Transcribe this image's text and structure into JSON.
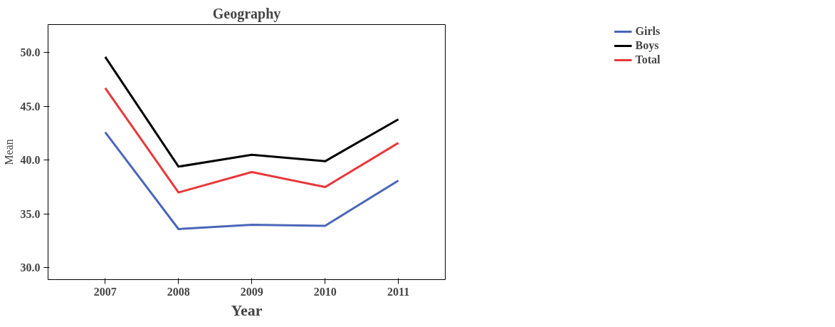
{
  "chart_data": {
    "type": "line",
    "title": "Geography",
    "xlabel": "Year",
    "ylabel": "Mean",
    "x": [
      2007,
      2008,
      2009,
      2010,
      2011
    ],
    "series": [
      {
        "name": "Girls",
        "color": "#4a66b8",
        "values": [
          42.6,
          33.6,
          34.0,
          33.9,
          38.1
        ]
      },
      {
        "name": "Boys",
        "color": "#000000",
        "values": [
          49.6,
          39.4,
          40.5,
          39.9,
          43.8
        ]
      },
      {
        "name": "Total",
        "color": "#e8383a",
        "values": [
          46.7,
          37.0,
          38.9,
          37.5,
          41.6
        ]
      }
    ],
    "xlim": [
      2006.22,
      2011.64
    ],
    "xticks": [
      2007,
      2008,
      2009,
      2010,
      2011
    ],
    "ylim": [
      28.9,
      52.6
    ],
    "yticks": [
      {
        "value": 30,
        "label": "30.0"
      },
      {
        "value": 35,
        "label": "35.0"
      },
      {
        "value": 40,
        "label": "40.0"
      },
      {
        "value": 45,
        "label": "45.0"
      },
      {
        "value": 50,
        "label": "50.0"
      }
    ],
    "grid": false,
    "legend": "right",
    "marker": "none",
    "line_style": "solid"
  }
}
